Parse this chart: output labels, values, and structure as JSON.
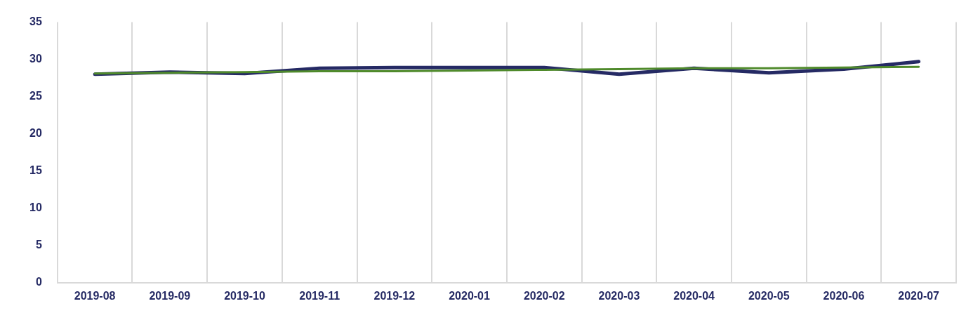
{
  "chart_data": {
    "type": "line",
    "categories": [
      "2019-08",
      "2019-09",
      "2019-10",
      "2019-11",
      "2019-12",
      "2020-01",
      "2020-02",
      "2020-03",
      "2020-04",
      "2020-05",
      "2020-06",
      "2020-07"
    ],
    "series": [
      {
        "color": "#252a64",
        "values": [
          28.0,
          28.3,
          28.1,
          28.8,
          28.9,
          28.9,
          28.9,
          28.0,
          28.8,
          28.2,
          28.7,
          29.7
        ]
      },
      {
        "color": "#4f8a2b",
        "values": [
          28.1,
          28.2,
          28.3,
          28.4,
          28.4,
          28.5,
          28.6,
          28.7,
          28.8,
          28.8,
          28.9,
          29.0
        ]
      }
    ],
    "ylim": [
      0,
      35
    ],
    "yticks": [
      0,
      5,
      10,
      15,
      20,
      25,
      30,
      35
    ],
    "grid": "x",
    "legend": false
  }
}
